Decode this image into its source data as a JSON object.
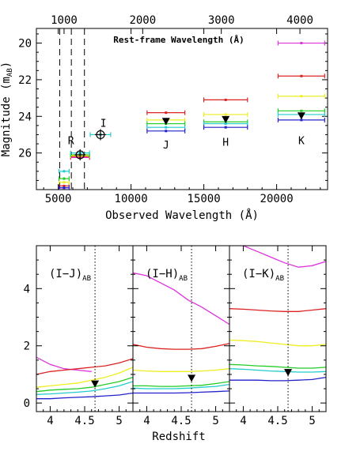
{
  "chart_data": [
    {
      "type": "scatter",
      "title": "",
      "xlabel": "Observed Wavelength (Å)",
      "ylabel": "Magnitude (m_AB)",
      "top_axis_label": "Rest-frame Wavelength (Å)",
      "xlim": [
        3500,
        23500
      ],
      "ylim": [
        28,
        19.2
      ],
      "y_inverted": true,
      "x_ticks": [
        5000,
        10000,
        15000,
        20000
      ],
      "y_ticks": [
        20,
        22,
        24,
        26
      ],
      "top_ticks": [
        1000,
        2000,
        3000,
        4000
      ],
      "top_scale_z": 4.4,
      "grid": false,
      "bands": [
        {
          "name": "R",
          "x": 6500,
          "xerr": 650
        },
        {
          "name": "I",
          "x": 7900,
          "xerr": 700
        },
        {
          "name": "J",
          "x": 12400,
          "xerr": 1300
        },
        {
          "name": "H",
          "x": 16500,
          "xerr": 1500
        },
        {
          "name": "K",
          "x": 21700,
          "xerr": 1600
        }
      ],
      "series": [
        {
          "color": "#dd33dd",
          "points": [
            [
              5400,
              27.9
            ],
            [
              6500,
              26.25
            ],
            [
              21700,
              20.0
            ]
          ],
          "xerr": [
            350,
            650,
            1600
          ]
        },
        {
          "color": "#dd2222",
          "points": [
            [
              5400,
              27.8
            ],
            [
              6500,
              26.2
            ],
            [
              12400,
              23.8
            ],
            [
              16500,
              23.1
            ],
            [
              21700,
              21.8
            ]
          ],
          "xerr": [
            350,
            650,
            1300,
            1500,
            1600
          ]
        },
        {
          "color": "#eeee22",
          "points": [
            [
              5400,
              27.6
            ],
            [
              6500,
              26.15
            ],
            [
              12400,
              24.2
            ],
            [
              16500,
              23.9
            ],
            [
              21700,
              22.9
            ]
          ],
          "xerr": [
            350,
            650,
            1300,
            1500,
            1600
          ]
        },
        {
          "color": "#22cc22",
          "points": [
            [
              5400,
              27.4
            ],
            [
              6500,
              26.1
            ],
            [
              12400,
              24.4
            ],
            [
              16500,
              24.3
            ],
            [
              21700,
              23.7
            ]
          ],
          "xerr": [
            350,
            650,
            1300,
            1500,
            1600
          ]
        },
        {
          "color": "#22cccc",
          "points": [
            [
              5400,
              27.0
            ],
            [
              6500,
              26.0
            ],
            [
              7900,
              25.0
            ],
            [
              12400,
              24.6
            ],
            [
              16500,
              24.4
            ],
            [
              21700,
              23.9
            ]
          ],
          "xerr": [
            350,
            650,
            700,
            1300,
            1500,
            1600
          ]
        },
        {
          "color": "#2222cc",
          "points": [
            [
              5400,
              27.9
            ],
            [
              12400,
              24.8
            ],
            [
              16500,
              24.6
            ],
            [
              21700,
              24.2
            ]
          ],
          "xerr": [
            350,
            1300,
            1500,
            1600
          ]
        }
      ],
      "observed": [
        {
          "band": "R",
          "x": 6500,
          "y": 26.1,
          "marker": "circle-cross"
        },
        {
          "band": "I",
          "x": 7900,
          "y": 25.0,
          "marker": "circle-cross"
        },
        {
          "band": "J",
          "x": 12400,
          "y": 24.3,
          "marker": "down-triangle"
        },
        {
          "band": "H",
          "x": 16500,
          "y": 24.2,
          "marker": "down-triangle"
        },
        {
          "band": "K",
          "x": 21700,
          "y": 24.0,
          "marker": "down-triangle"
        }
      ],
      "vlines_dashed": [
        5100,
        5900,
        6800
      ]
    },
    {
      "type": "line",
      "xlabel": "Redshift",
      "ylabel": "",
      "ylim": [
        -0.3,
        5.5
      ],
      "y_ticks": [
        0,
        2,
        4
      ],
      "panels": [
        {
          "label": "(I−J)",
          "label_sub": "AB",
          "xlim": [
            3.8,
            5.2
          ],
          "x_ticks": [
            4,
            4.5,
            5
          ],
          "vline": 4.65,
          "marker": {
            "x": 4.65,
            "y": 0.65
          },
          "series": [
            {
              "color": "#dd33dd",
              "x": [
                3.8,
                4.0,
                4.2,
                4.4,
                4.6
              ],
              "y": [
                1.6,
                1.35,
                1.2,
                1.15,
                1.1
              ]
            },
            {
              "color": "#dd2222",
              "x": [
                3.8,
                4.0,
                4.2,
                4.4,
                4.6,
                4.8,
                5.0,
                5.2
              ],
              "y": [
                1.0,
                1.1,
                1.15,
                1.2,
                1.25,
                1.3,
                1.4,
                1.55
              ]
            },
            {
              "color": "#eeee22",
              "x": [
                3.8,
                4.0,
                4.2,
                4.4,
                4.6,
                4.8,
                5.0,
                5.2
              ],
              "y": [
                0.55,
                0.6,
                0.65,
                0.7,
                0.8,
                0.9,
                1.05,
                1.25
              ]
            },
            {
              "color": "#22cc22",
              "x": [
                3.8,
                4.0,
                4.2,
                4.4,
                4.6,
                4.8,
                5.0,
                5.2
              ],
              "y": [
                0.4,
                0.45,
                0.48,
                0.5,
                0.55,
                0.65,
                0.75,
                0.9
              ]
            },
            {
              "color": "#22cccc",
              "x": [
                3.8,
                4.0,
                4.2,
                4.4,
                4.6,
                4.8,
                5.0,
                5.2
              ],
              "y": [
                0.3,
                0.32,
                0.35,
                0.38,
                0.42,
                0.5,
                0.6,
                0.75
              ]
            },
            {
              "color": "#2222cc",
              "x": [
                3.8,
                4.0,
                4.2,
                4.4,
                4.6,
                4.8,
                5.0,
                5.2
              ],
              "y": [
                0.15,
                0.15,
                0.18,
                0.2,
                0.22,
                0.25,
                0.28,
                0.35
              ]
            }
          ]
        },
        {
          "label": "(I−H)",
          "label_sub": "AB",
          "xlim": [
            3.8,
            5.2
          ],
          "x_ticks": [
            4,
            4.5,
            5
          ],
          "vline": 4.65,
          "marker": {
            "x": 4.65,
            "y": 0.85
          },
          "series": [
            {
              "color": "#dd33dd",
              "x": [
                3.8,
                4.0,
                4.2,
                4.4,
                4.6,
                4.8,
                5.0,
                5.2
              ],
              "y": [
                4.55,
                4.45,
                4.2,
                3.95,
                3.6,
                3.35,
                3.05,
                2.75
              ]
            },
            {
              "color": "#dd2222",
              "x": [
                3.8,
                4.0,
                4.2,
                4.4,
                4.6,
                4.8,
                5.0,
                5.2
              ],
              "y": [
                2.05,
                1.95,
                1.9,
                1.88,
                1.88,
                1.9,
                1.98,
                2.08
              ]
            },
            {
              "color": "#eeee22",
              "x": [
                3.8,
                4.0,
                4.2,
                4.4,
                4.6,
                4.8,
                5.0,
                5.2
              ],
              "y": [
                1.15,
                1.12,
                1.1,
                1.1,
                1.1,
                1.12,
                1.15,
                1.2
              ]
            },
            {
              "color": "#22cc22",
              "x": [
                3.8,
                4.0,
                4.2,
                4.4,
                4.6,
                4.8,
                5.0,
                5.2
              ],
              "y": [
                0.6,
                0.6,
                0.58,
                0.58,
                0.6,
                0.62,
                0.68,
                0.75
              ]
            },
            {
              "color": "#22cccc",
              "x": [
                3.8,
                4.0,
                4.2,
                4.4,
                4.6,
                4.8,
                5.0,
                5.2
              ],
              "y": [
                0.52,
                0.5,
                0.5,
                0.5,
                0.52,
                0.55,
                0.58,
                0.65
              ]
            },
            {
              "color": "#2222cc",
              "x": [
                3.8,
                4.0,
                4.2,
                4.4,
                4.6,
                4.8,
                5.0,
                5.2
              ],
              "y": [
                0.35,
                0.35,
                0.35,
                0.35,
                0.36,
                0.38,
                0.4,
                0.42
              ]
            }
          ]
        },
        {
          "label": "(I−K)",
          "label_sub": "AB",
          "xlim": [
            3.8,
            5.2
          ],
          "x_ticks": [
            4,
            4.5,
            5
          ],
          "vline": 4.65,
          "marker": {
            "x": 4.65,
            "y": 1.05
          },
          "series": [
            {
              "color": "#dd33dd",
              "x": [
                3.8,
                4.0,
                4.2,
                4.4,
                4.6,
                4.8,
                5.0,
                5.2
              ],
              "y": [
                5.7,
                5.5,
                5.3,
                5.1,
                4.9,
                4.75,
                4.8,
                4.95
              ]
            },
            {
              "color": "#dd2222",
              "x": [
                3.8,
                4.0,
                4.2,
                4.4,
                4.6,
                4.8,
                5.0,
                5.2
              ],
              "y": [
                3.3,
                3.28,
                3.25,
                3.22,
                3.2,
                3.2,
                3.25,
                3.3
              ]
            },
            {
              "color": "#eeee22",
              "x": [
                3.8,
                4.0,
                4.2,
                4.4,
                4.6,
                4.8,
                5.0,
                5.2
              ],
              "y": [
                2.2,
                2.18,
                2.15,
                2.1,
                2.05,
                2.0,
                2.0,
                2.05
              ]
            },
            {
              "color": "#22cc22",
              "x": [
                3.8,
                4.0,
                4.2,
                4.4,
                4.6,
                4.8,
                5.0,
                5.2
              ],
              "y": [
                1.35,
                1.33,
                1.3,
                1.28,
                1.25,
                1.22,
                1.22,
                1.25
              ]
            },
            {
              "color": "#22cccc",
              "x": [
                3.8,
                4.0,
                4.2,
                4.4,
                4.6,
                4.8,
                5.0,
                5.2
              ],
              "y": [
                1.2,
                1.18,
                1.15,
                1.12,
                1.1,
                1.08,
                1.08,
                1.1
              ]
            },
            {
              "color": "#2222cc",
              "x": [
                3.8,
                4.0,
                4.2,
                4.4,
                4.6,
                4.8,
                5.0,
                5.2
              ],
              "y": [
                0.8,
                0.8,
                0.8,
                0.78,
                0.78,
                0.8,
                0.82,
                0.9
              ]
            }
          ]
        }
      ]
    }
  ]
}
